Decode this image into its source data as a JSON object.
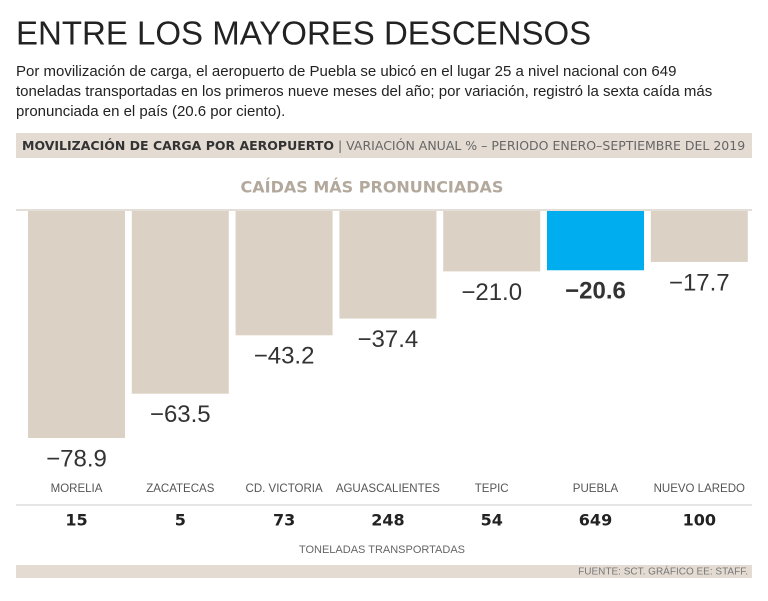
{
  "chart_data": {
    "type": "bar",
    "title": "ENTRE LOS MAYORES DESCENSOS",
    "description": [
      "Por movilización de carga, el aeropuerto de Puebla se ubicó en el lugar 25 a nivel nacional con 649",
      "toneladas transportadas en los primeros nueve meses del año; por variación, registró la sexta caída más",
      "pronunciada en el país (20.6 por ciento)."
    ],
    "banner_title": "MOVILIZACIÓN DE CARGA POR AEROPUERTO",
    "banner_subtitle": "| VARIACIÓN ANUAL % – PERIODO ENERO–SEPTIEMBRE DEL 2019",
    "subtitle": "CAÍDAS MÁS PRONUNCIADAS",
    "categories": [
      "MORELIA",
      "ZACATECAS",
      "CD. VICTORIA",
      "AGUASCALIENTES",
      "TEPIC",
      "PUEBLA",
      "NUEVO  LAREDO"
    ],
    "values": [
      -78.9,
      -63.5,
      -43.2,
      -37.4,
      -21.0,
      -20.6,
      -17.7
    ],
    "value_labels": [
      "−78.9",
      "−63.5",
      "−43.2",
      "−37.4",
      "−21.0",
      "−20.6",
      "−17.7"
    ],
    "color": "#dcd1c5",
    "highlight": {
      "category": "PUEBLA",
      "color": "#00aeef"
    },
    "tonnes": [
      15,
      5,
      73,
      248,
      54,
      649,
      100
    ],
    "tonnes_label": "TONELADAS TRANSPORTADAS",
    "source": "FUENTE: SCT. GRÁFICO EE: STAFF."
  }
}
